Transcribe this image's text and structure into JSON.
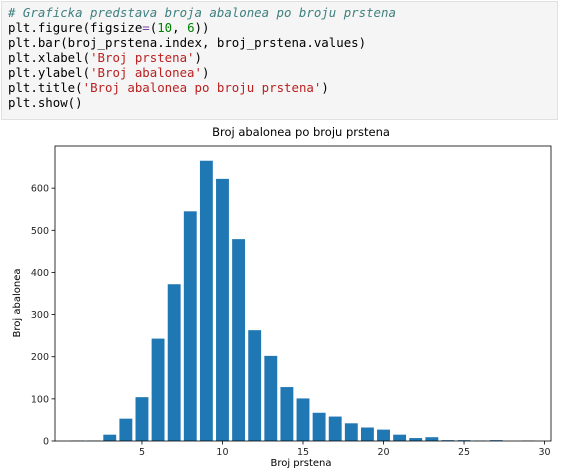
{
  "notebook": {
    "code_lines": [
      [
        {
          "t": "# Graficka predstava broja abalonea po broju prstena",
          "k": "comment"
        }
      ],
      [
        {
          "t": "plt.figure(figsize",
          "k": "plain"
        },
        {
          "t": "=",
          "k": "op"
        },
        {
          "t": "(",
          "k": "plain"
        },
        {
          "t": "10",
          "k": "num"
        },
        {
          "t": ", ",
          "k": "plain"
        },
        {
          "t": "6",
          "k": "num"
        },
        {
          "t": "))",
          "k": "plain"
        }
      ],
      [
        {
          "t": "plt.bar(broj_prstena.index, broj_prstena.values)",
          "k": "plain"
        }
      ],
      [
        {
          "t": "plt.xlabel(",
          "k": "plain"
        },
        {
          "t": "'Broj prstena'",
          "k": "str"
        },
        {
          "t": ")",
          "k": "plain"
        }
      ],
      [
        {
          "t": "plt.ylabel(",
          "k": "plain"
        },
        {
          "t": "'Broj abalonea'",
          "k": "str"
        },
        {
          "t": ")",
          "k": "plain"
        }
      ],
      [
        {
          "t": "plt.title(",
          "k": "plain"
        },
        {
          "t": "'Broj abalonea po broju prstena'",
          "k": "str"
        },
        {
          "t": ")",
          "k": "plain"
        }
      ],
      [
        {
          "t": "plt.show()",
          "k": "plain"
        }
      ]
    ]
  },
  "colors": {
    "bar": "#1f77b4",
    "axis": "#000000",
    "text": "#262626"
  },
  "chart_data": {
    "type": "bar",
    "title": "Broj abalonea po broju prstena",
    "xlabel": "Broj prstena",
    "ylabel": "Broj abalonea",
    "x": [
      1,
      2,
      3,
      4,
      5,
      6,
      7,
      8,
      9,
      10,
      11,
      12,
      13,
      14,
      15,
      16,
      17,
      18,
      19,
      20,
      21,
      22,
      23,
      24,
      25,
      26,
      27,
      29
    ],
    "values": [
      1,
      1,
      15,
      53,
      104,
      243,
      372,
      545,
      665,
      622,
      479,
      263,
      202,
      128,
      101,
      67,
      58,
      42,
      32,
      27,
      15,
      7,
      9,
      2,
      2,
      1,
      2,
      1
    ],
    "xlim": [
      -0.4,
      30.4
    ],
    "ylim": [
      0,
      700
    ],
    "xticks": [
      5,
      10,
      15,
      20,
      25,
      30
    ],
    "yticks": [
      0,
      100,
      200,
      300,
      400,
      500,
      600
    ],
    "grid": false
  }
}
